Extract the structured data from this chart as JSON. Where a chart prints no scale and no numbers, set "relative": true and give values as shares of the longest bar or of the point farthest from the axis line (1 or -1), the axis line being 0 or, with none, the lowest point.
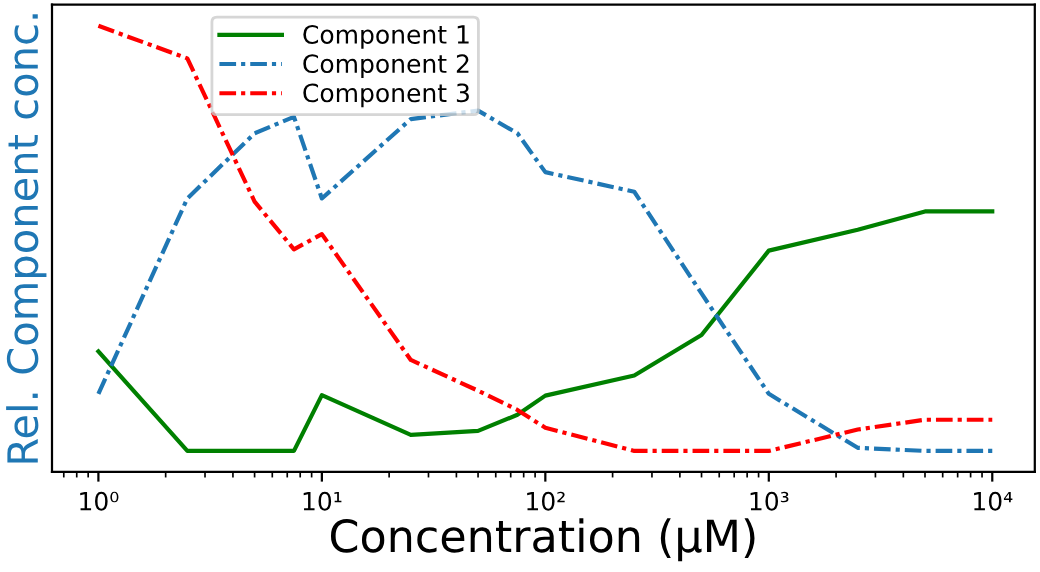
{
  "chart_data": {
    "type": "line",
    "xlabel": "Concentration (μM)",
    "ylabel": "Rel. Component conc.",
    "relative": true,
    "log": "x",
    "x": [
      1,
      2.5,
      5,
      7.5,
      10,
      25,
      50,
      75,
      100,
      250,
      500,
      1000,
      2500,
      5000,
      10000
    ],
    "xlim": [
      0.62,
      15500
    ],
    "xticks": [
      {
        "value": 1,
        "label": "10⁰"
      },
      {
        "value": 10,
        "label": "10¹"
      },
      {
        "value": 100,
        "label": "10²"
      },
      {
        "value": 1000,
        "label": "10³"
      },
      {
        "value": 10000,
        "label": "10⁴"
      }
    ],
    "legend": "top left",
    "grid": false,
    "marker": "none",
    "series": [
      {
        "name": "Component 1",
        "color": "#008000",
        "line_style": "solid",
        "values": [
          0.27,
          0.047,
          0.047,
          0.047,
          0.172,
          0.083,
          0.092,
          0.128,
          0.171,
          0.216,
          0.307,
          0.496,
          0.543,
          0.584,
          0.584
        ]
      },
      {
        "name": "Component 2",
        "color": "#1f77b4",
        "line_style": "dashdot",
        "values": [
          0.175,
          0.613,
          0.759,
          0.796,
          0.613,
          0.791,
          0.81,
          0.759,
          0.672,
          0.628,
          0.4,
          0.175,
          0.054,
          0.047,
          0.047
        ]
      },
      {
        "name": "Component 3",
        "color": "#ff0000",
        "line_style": "dashdot",
        "values": [
          1.0,
          0.927,
          0.606,
          0.499,
          0.533,
          0.251,
          0.182,
          0.139,
          0.099,
          0.047,
          0.047,
          0.047,
          0.095,
          0.117,
          0.117
        ]
      }
    ]
  }
}
